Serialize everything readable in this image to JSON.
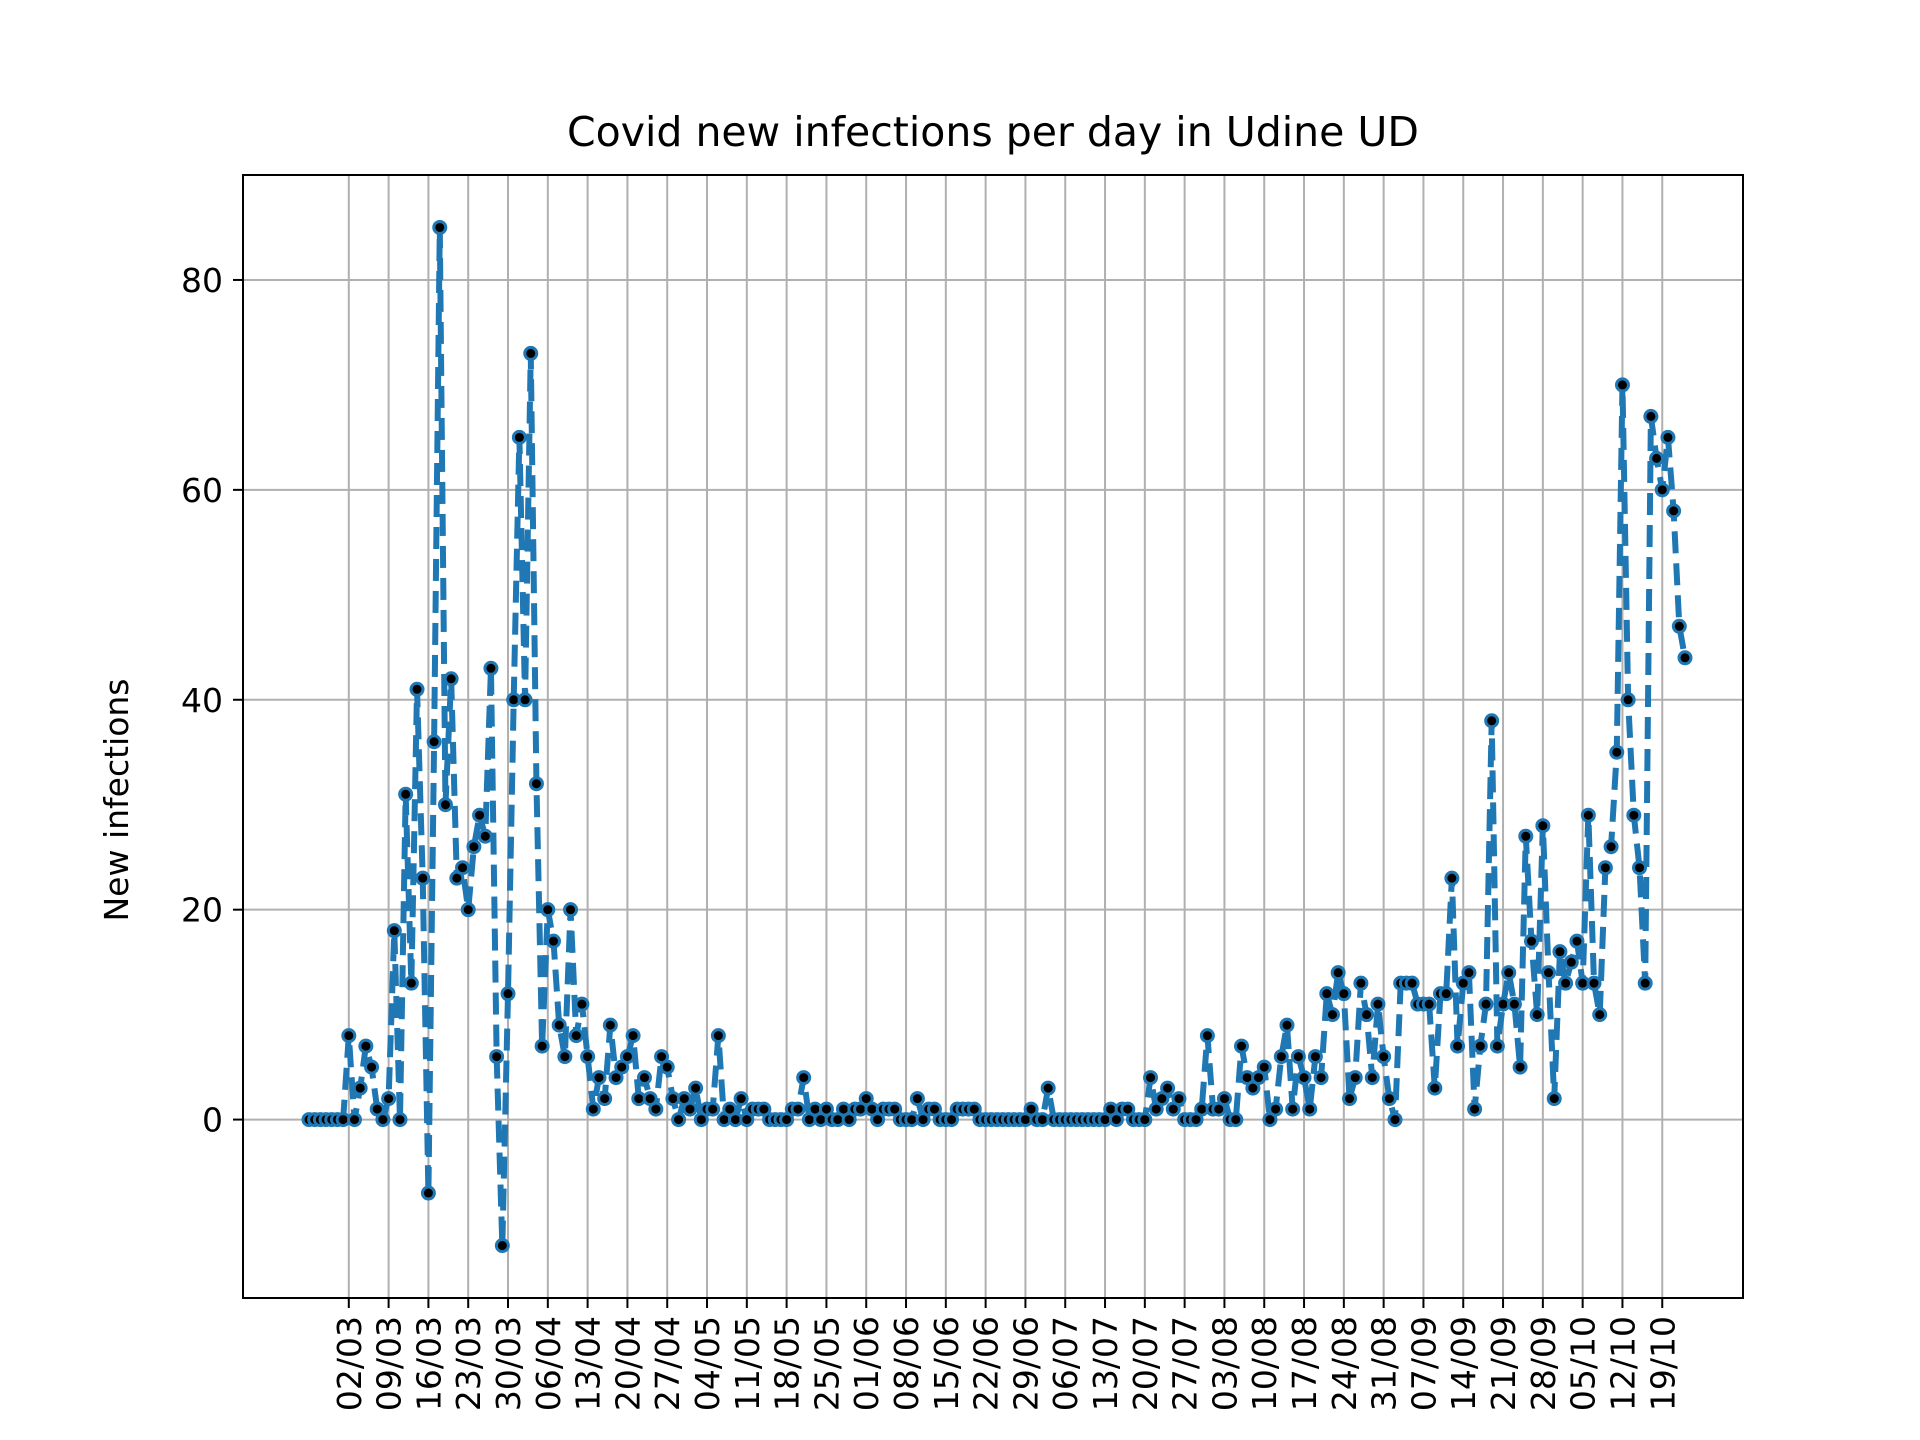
{
  "chart_data": {
    "type": "line",
    "title": "Covid new infections per day in Udine UD",
    "xlabel": "",
    "ylabel": "New infections",
    "ylim": [
      -17,
      90
    ],
    "yticks": [
      0,
      20,
      40,
      60,
      80
    ],
    "grid": true,
    "legend": "none",
    "line_color": "#1f77b4",
    "line_style": "dashed",
    "marker_color": "#000000",
    "xtick_labels": [
      "02/03",
      "09/03",
      "16/03",
      "23/03",
      "30/03",
      "06/04",
      "13/04",
      "20/04",
      "27/04",
      "04/05",
      "11/05",
      "18/05",
      "25/05",
      "01/06",
      "08/06",
      "15/06",
      "22/06",
      "29/06",
      "06/07",
      "13/07",
      "20/07",
      "27/07",
      "03/08",
      "10/08",
      "17/08",
      "24/08",
      "31/08",
      "07/09",
      "14/09",
      "21/09",
      "28/09",
      "05/10",
      "12/10",
      "19/10"
    ],
    "x_start": "24/02",
    "x_end": "19/10",
    "series": [
      {
        "values": [
          0,
          0,
          0,
          0,
          0,
          0,
          0,
          8,
          0,
          3,
          7,
          5,
          1,
          0,
          2,
          18,
          0,
          31,
          13,
          41,
          23,
          -7,
          36,
          85,
          30,
          42,
          23,
          24,
          20,
          26,
          29,
          27,
          43,
          6,
          -12,
          12,
          40,
          65,
          40,
          73,
          32,
          7,
          20,
          17,
          9,
          6,
          20,
          8,
          11,
          6,
          1,
          4,
          2,
          9,
          4,
          5,
          6,
          8,
          2,
          4,
          2,
          1,
          6,
          5,
          2,
          0,
          2,
          1,
          3,
          0,
          1,
          1,
          8,
          0,
          1,
          0,
          2,
          0,
          1,
          1,
          1,
          0,
          0,
          0,
          0,
          1,
          1,
          4,
          0,
          1,
          0,
          1,
          0,
          0,
          1,
          0,
          1,
          1,
          2,
          1,
          0,
          1,
          1,
          1,
          0,
          0,
          0,
          2,
          0,
          1,
          1,
          0,
          0,
          0,
          1,
          1,
          1,
          1,
          0,
          0,
          0,
          0,
          0,
          0,
          0,
          0,
          0,
          1,
          0,
          0,
          3,
          0,
          0,
          0,
          0,
          0,
          0,
          0,
          0,
          0,
          0,
          1,
          0,
          1,
          1,
          0,
          0,
          0,
          4,
          1,
          2,
          3,
          1,
          2,
          0,
          0,
          0,
          1,
          8,
          1,
          1,
          2,
          0,
          0,
          7,
          4,
          3,
          4,
          5,
          0,
          1,
          6,
          9,
          1,
          6,
          4,
          1,
          6,
          4,
          12,
          10,
          14,
          12,
          2,
          4,
          13,
          10,
          4,
          11,
          6,
          2,
          0,
          13,
          13,
          13,
          11,
          11,
          11,
          3,
          12,
          12,
          23,
          7,
          13,
          14,
          1,
          7,
          11,
          38,
          7,
          11,
          14,
          11,
          5,
          27,
          17,
          10,
          28,
          14,
          2,
          16,
          13,
          15,
          17,
          13,
          29,
          13,
          10,
          24,
          26,
          35,
          70,
          40,
          29,
          24,
          13,
          67,
          63,
          60,
          65,
          58,
          47,
          44
        ]
      }
    ]
  }
}
